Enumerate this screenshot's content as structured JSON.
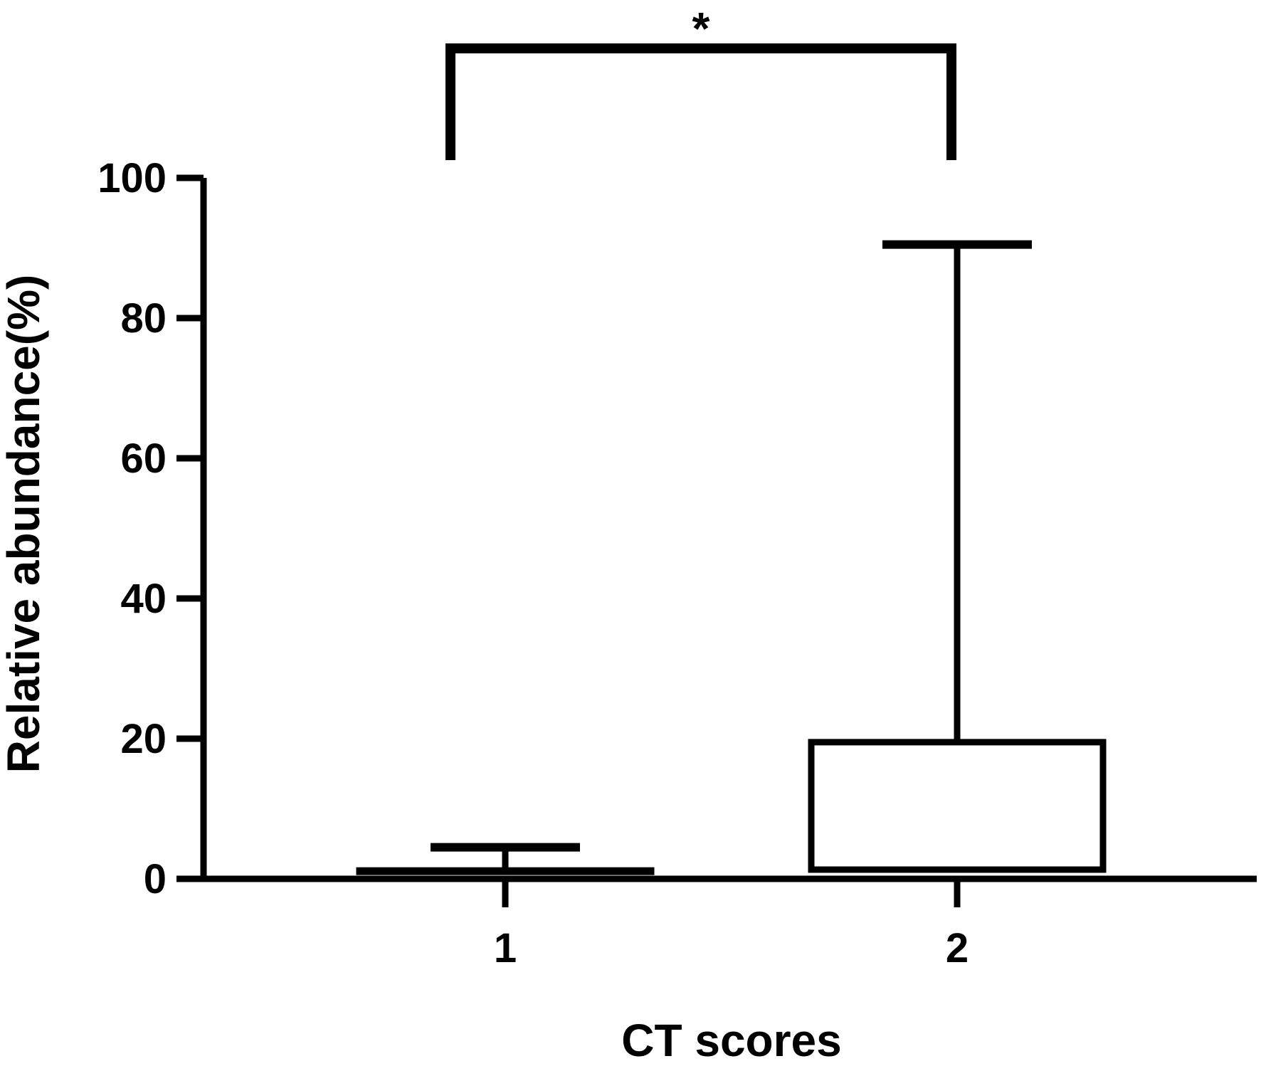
{
  "chart_data": {
    "type": "bar",
    "categories": [
      "1",
      "2"
    ],
    "values": [
      1.2,
      19.5
    ],
    "error_upper": [
      4.5,
      90.5
    ],
    "xlabel": "CT scores",
    "ylabel": "Relative abundance(%)",
    "ylim": [
      0,
      100
    ],
    "yticks": [
      0,
      20,
      40,
      60,
      80,
      100
    ],
    "ytick_labels": [
      "0",
      "20",
      "40",
      "60",
      "80",
      "100"
    ],
    "significance": {
      "between": [
        "1",
        "2"
      ],
      "label": "*"
    },
    "grid": false,
    "legend": "none",
    "colors": {
      "bar_fill": "#ffffff",
      "stroke": "#000000"
    }
  }
}
